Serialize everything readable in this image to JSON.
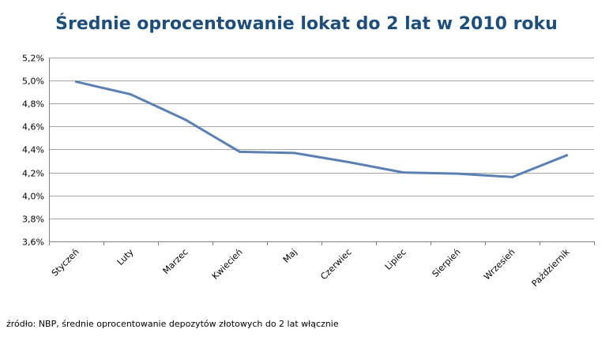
{
  "chart_data": {
    "type": "line",
    "title": "Średnie oprocentowanie lokat do 2 lat w 2010 roku",
    "categories": [
      "Styczeń",
      "Luty",
      "Marzec",
      "Kwiecień",
      "Maj",
      "Czerwiec",
      "Lipiec",
      "Sierpień",
      "Wrzesień",
      "Październik"
    ],
    "series": [
      {
        "values": [
          4.99,
          4.88,
          4.66,
          4.38,
          4.37,
          4.29,
          4.2,
          4.19,
          4.16,
          4.35
        ]
      }
    ],
    "ylim": [
      3.6,
      5.2
    ],
    "yticks": [
      "3,6%",
      "3,8%",
      "4,0%",
      "4,2%",
      "4,4%",
      "4,6%",
      "4,8%",
      "5,0%",
      "5,2%"
    ],
    "xlabel": "",
    "ylabel": "",
    "grid": true,
    "line_color": "#5b80b2",
    "title_color": "#1f4e79"
  },
  "source": "źródło: NBP, średnie oprocentowanie depozytów złotowych do 2 lat włącznie"
}
